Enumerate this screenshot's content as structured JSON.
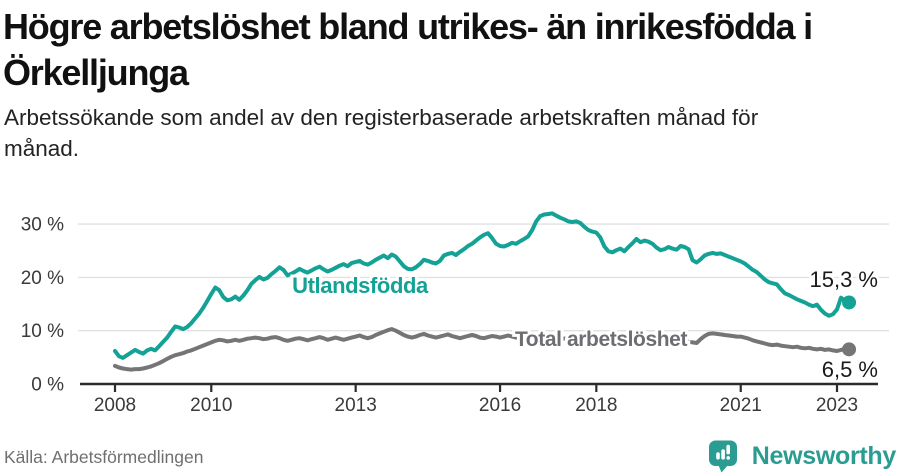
{
  "header": {
    "title_lines": [
      "Högre arbetslöshet bland utrikes- än inrikesfödda i",
      "Örkelljunga"
    ],
    "subtitle_lines": [
      "Arbetssökande som andel av den registerbaserade arbetskraften månad för",
      "månad."
    ]
  },
  "chart_data": {
    "type": "line",
    "unit": "%",
    "frequency": "monthly",
    "x_start": "2008-01",
    "x_end": "2023-04",
    "grid": "horizontal",
    "ylim": [
      0,
      33
    ],
    "y_ticks": [
      {
        "label": "0 %",
        "value": 0
      },
      {
        "label": "10 %",
        "value": 10
      },
      {
        "label": "20 %",
        "value": 20
      },
      {
        "label": "30 %",
        "value": 30
      }
    ],
    "x_ticks": [
      {
        "label": "2008",
        "month_index": 0
      },
      {
        "label": "2010",
        "month_index": 24
      },
      {
        "label": "2013",
        "month_index": 60
      },
      {
        "label": "2016",
        "month_index": 96
      },
      {
        "label": "2018",
        "month_index": 120
      },
      {
        "label": "2021",
        "month_index": 156
      },
      {
        "label": "2023",
        "month_index": 180
      }
    ],
    "series": [
      {
        "name": "Total arbetslöshet",
        "color": "#757578",
        "label_color": "#6e6e72",
        "end_label": "6,5 %",
        "end_value": 6.5,
        "values": [
          3.4,
          3.1,
          2.9,
          2.8,
          2.7,
          2.8,
          2.8,
          2.9,
          3.1,
          3.3,
          3.6,
          3.9,
          4.3,
          4.7,
          5.1,
          5.4,
          5.6,
          5.8,
          6.1,
          6.3,
          6.6,
          6.9,
          7.2,
          7.5,
          7.8,
          8.1,
          8.3,
          8.2,
          8.0,
          8.1,
          8.3,
          8.1,
          8.3,
          8.5,
          8.6,
          8.7,
          8.6,
          8.4,
          8.5,
          8.7,
          8.8,
          8.6,
          8.3,
          8.1,
          8.3,
          8.5,
          8.6,
          8.4,
          8.2,
          8.4,
          8.6,
          8.8,
          8.6,
          8.3,
          8.5,
          8.7,
          8.5,
          8.3,
          8.5,
          8.7,
          8.9,
          9.1,
          8.8,
          8.6,
          8.8,
          9.2,
          9.5,
          9.8,
          10.1,
          10.3,
          10.0,
          9.6,
          9.2,
          8.9,
          8.7,
          8.9,
          9.2,
          9.4,
          9.1,
          8.9,
          8.7,
          8.9,
          9.1,
          9.3,
          9.0,
          8.8,
          8.6,
          8.8,
          9.0,
          9.2,
          9.0,
          8.7,
          8.6,
          8.8,
          9.0,
          8.9,
          8.7,
          8.9,
          9.1,
          8.9,
          8.7,
          8.8,
          9.0,
          8.8,
          8.6,
          8.8,
          8.9,
          8.7,
          8.8,
          9.0,
          8.8,
          8.6,
          8.5,
          8.7,
          8.9,
          8.7,
          8.5,
          8.6,
          8.8,
          8.6,
          8.5,
          8.4,
          8.2,
          8.1,
          8.0,
          8.2,
          8.4,
          8.2,
          8.1,
          8.3,
          8.4,
          8.2,
          8.1,
          8.2,
          8.0,
          7.9,
          7.8,
          8.0,
          8.1,
          7.9,
          7.8,
          8.0,
          8.1,
          7.9,
          7.8,
          7.7,
          8.4,
          9.0,
          9.4,
          9.5,
          9.4,
          9.3,
          9.2,
          9.1,
          9.0,
          8.9,
          8.9,
          8.7,
          8.5,
          8.2,
          8.0,
          7.8,
          7.6,
          7.4,
          7.3,
          7.4,
          7.2,
          7.1,
          7.0,
          6.9,
          7.0,
          6.8,
          6.7,
          6.8,
          6.6,
          6.5,
          6.6,
          6.4,
          6.5,
          6.3,
          6.2,
          6.4,
          6.6,
          6.5
        ]
      },
      {
        "name": "Utlandsfödda",
        "color": "#13a295",
        "label_color": "#13a295",
        "end_label": "15,3 %",
        "end_value": 15.3,
        "values": [
          6.2,
          5.2,
          4.9,
          5.4,
          5.9,
          6.4,
          6.0,
          5.7,
          6.3,
          6.6,
          6.3,
          7.1,
          7.9,
          8.7,
          9.8,
          10.8,
          10.6,
          10.3,
          10.7,
          11.4,
          12.3,
          13.2,
          14.3,
          15.6,
          16.9,
          18.1,
          17.6,
          16.3,
          15.7,
          15.9,
          16.4,
          15.8,
          16.6,
          17.6,
          18.8,
          19.5,
          20.1,
          19.6,
          19.9,
          20.6,
          21.2,
          21.9,
          21.4,
          20.4,
          20.7,
          21.1,
          21.6,
          21.2,
          20.9,
          21.3,
          21.7,
          22.0,
          21.5,
          21.1,
          21.4,
          21.8,
          22.2,
          22.5,
          22.1,
          22.7,
          22.9,
          23.1,
          22.6,
          22.4,
          22.8,
          23.3,
          23.7,
          24.1,
          23.6,
          24.3,
          23.9,
          23.0,
          22.1,
          21.6,
          21.5,
          21.9,
          22.5,
          23.3,
          23.1,
          22.8,
          22.6,
          23.1,
          24.1,
          24.4,
          24.6,
          24.2,
          24.8,
          25.3,
          25.9,
          26.3,
          26.9,
          27.5,
          28.0,
          28.3,
          27.4,
          26.3,
          25.9,
          25.8,
          26.1,
          26.5,
          26.3,
          26.8,
          27.2,
          27.7,
          28.9,
          30.5,
          31.5,
          31.8,
          31.9,
          32.0,
          31.6,
          31.2,
          30.9,
          30.5,
          30.4,
          30.5,
          30.2,
          29.5,
          28.9,
          28.6,
          28.4,
          27.5,
          25.8,
          24.9,
          24.7,
          25.1,
          25.4,
          24.9,
          25.7,
          26.4,
          27.2,
          26.6,
          26.9,
          26.7,
          26.3,
          25.6,
          25.1,
          25.3,
          25.7,
          25.4,
          25.2,
          25.9,
          25.7,
          25.3,
          23.2,
          22.8,
          23.4,
          24.1,
          24.4,
          24.6,
          24.4,
          24.5,
          24.2,
          23.9,
          23.6,
          23.3,
          23.0,
          22.6,
          22.0,
          21.4,
          21.0,
          20.3,
          19.6,
          19.1,
          18.9,
          18.7,
          17.8,
          17.0,
          16.7,
          16.3,
          15.9,
          15.6,
          15.3,
          14.9,
          14.6,
          14.9,
          13.9,
          13.2,
          12.8,
          13.1,
          14.0,
          16.2,
          15.6,
          15.3
        ]
      }
    ]
  },
  "footer": {
    "source": "Källa: Arbetsförmedlingen",
    "logo_text": "Newsworthy",
    "logo_icon": "newsworthy-chart-pin-icon",
    "logo_color": "#2b9c91"
  },
  "colors": {
    "accent_teal": "#13a295",
    "line_gray": "#757578",
    "axis": "#2b2b2b",
    "gridline": "#e1e1e1",
    "tick_text": "#3a3a3a",
    "value_text": "#1a1a1a"
  }
}
